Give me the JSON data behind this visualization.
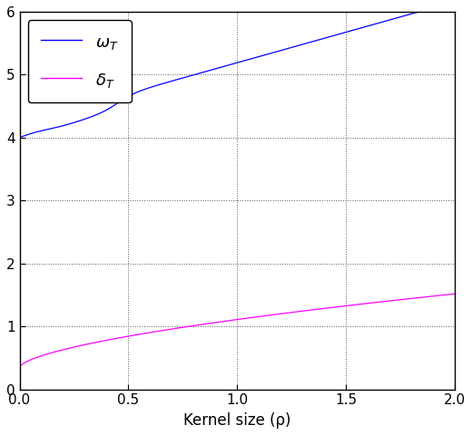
{
  "title": "",
  "xlabel": "Kernel size (ρ)",
  "ylabel": "",
  "xlim": [
    0,
    2
  ],
  "ylim": [
    0,
    6
  ],
  "xticks": [
    0,
    0.5,
    1.0,
    1.5,
    2.0
  ],
  "yticks": [
    0,
    1,
    2,
    3,
    4,
    5,
    6
  ],
  "omega_color": "#0000ff",
  "delta_color": "#ff00ff",
  "grid_color": "#555555",
  "background_color": "#ffffff",
  "figsize": [
    5.2,
    4.8
  ],
  "dpi": 100
}
